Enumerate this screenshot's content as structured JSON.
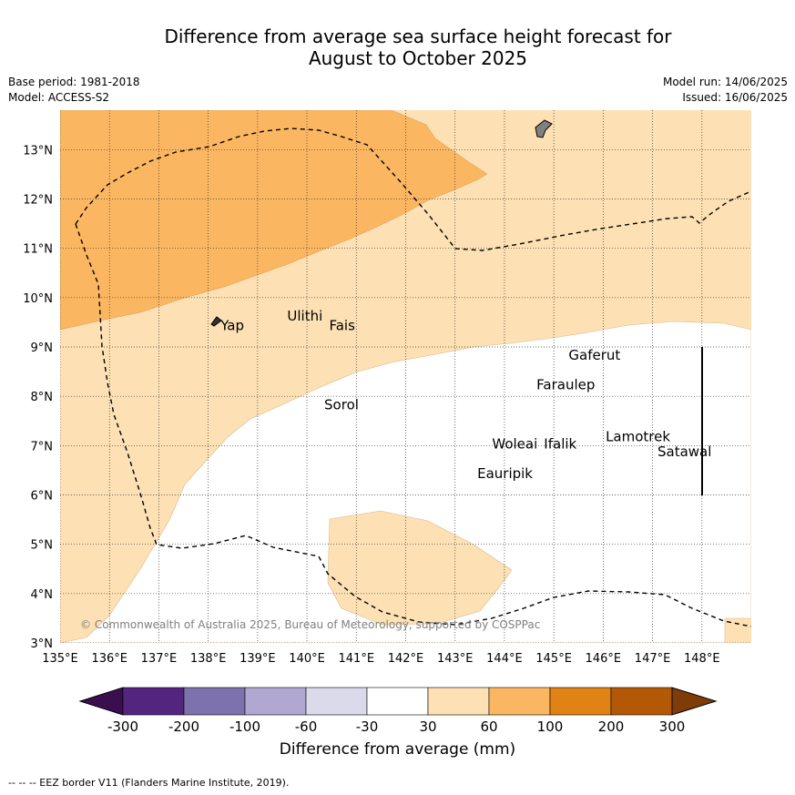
{
  "header": {
    "title_line1": "Difference from average sea surface height forecast for",
    "title_line2": "August to October 2025",
    "base_period": "Base period: 1981-2018",
    "model": "Model: ACCESS-S2",
    "model_run": "Model run: 14/06/2025",
    "issued": "Issued: 16/06/2025"
  },
  "map": {
    "lon_range": [
      135,
      149
    ],
    "lat_range": [
      3,
      13.8
    ],
    "lon_ticks": [
      "135°E",
      "136°E",
      "137°E",
      "138°E",
      "139°E",
      "140°E",
      "141°E",
      "142°E",
      "143°E",
      "144°E",
      "145°E",
      "146°E",
      "147°E",
      "148°E"
    ],
    "lat_ticks": [
      "3°N",
      "4°N",
      "5°N",
      "6°N",
      "7°N",
      "8°N",
      "9°N",
      "10°N",
      "11°N",
      "12°N",
      "13°N"
    ],
    "places": [
      {
        "name": "Yap",
        "lon": 138.25,
        "lat": 9.45
      },
      {
        "name": "Ulithi",
        "lon": 139.6,
        "lat": 9.65
      },
      {
        "name": "Fais",
        "lon": 140.45,
        "lat": 9.45
      },
      {
        "name": "Gaferut",
        "lon": 145.3,
        "lat": 8.85
      },
      {
        "name": "Faraulep",
        "lon": 144.65,
        "lat": 8.25
      },
      {
        "name": "Sorol",
        "lon": 140.35,
        "lat": 7.85
      },
      {
        "name": "Woleai",
        "lon": 143.75,
        "lat": 7.05
      },
      {
        "name": "Ifalik",
        "lon": 144.8,
        "lat": 7.05
      },
      {
        "name": "Lamotrek",
        "lon": 146.05,
        "lat": 7.2
      },
      {
        "name": "Satawal",
        "lon": 147.1,
        "lat": 6.9
      },
      {
        "name": "Eauripik",
        "lon": 143.45,
        "lat": 6.45
      }
    ],
    "copyright": "© Commonwealth of Australia 2025, Bureau of Meteorology, supported by COSPPac"
  },
  "colorbar": {
    "ticks": [
      "-300",
      "-200",
      "-100",
      "-60",
      "-30",
      "30",
      "60",
      "100",
      "200",
      "300"
    ],
    "colors": [
      "#3b0f4f",
      "#54257f",
      "#7e72ae",
      "#b0a8d1",
      "#dadaeb",
      "#ffffff",
      "#fde0b3",
      "#fbb661",
      "#e08214",
      "#b35806",
      "#7f3b08"
    ],
    "label": "Difference from average (mm)"
  },
  "footer": {
    "eez_legend": "--  --  -- EEZ border V11 (Flanders Marine Institute, 2019)."
  }
}
